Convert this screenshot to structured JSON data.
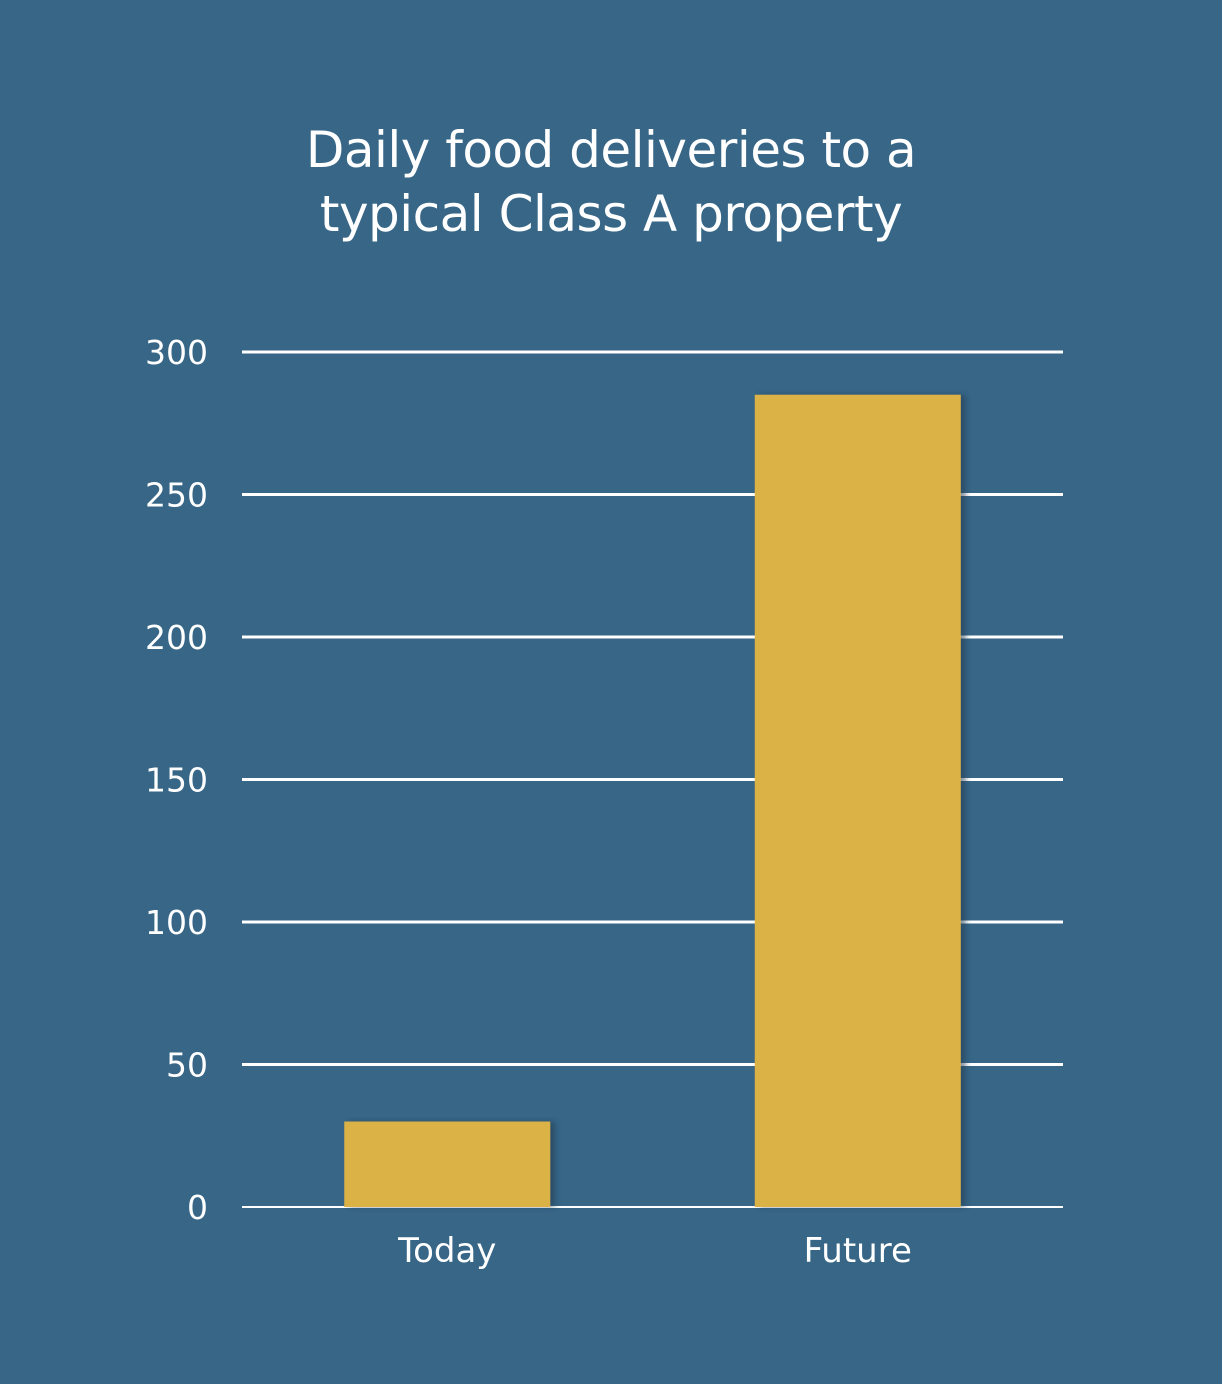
{
  "chart_data": {
    "type": "bar",
    "title_lines": [
      "Daily food deliveries to a",
      "typical Class A property"
    ],
    "categories": [
      "Today",
      "Future"
    ],
    "values": [
      30,
      285
    ],
    "ylim": [
      0,
      300
    ],
    "yticks": [
      0,
      50,
      100,
      150,
      200,
      250,
      300
    ],
    "xlabel": "",
    "ylabel": "",
    "grid": true,
    "legend": "none",
    "colors": {
      "background": "#376687",
      "bar": "#dbb245",
      "grid": "#ffffff",
      "text": "#ffffff"
    }
  }
}
